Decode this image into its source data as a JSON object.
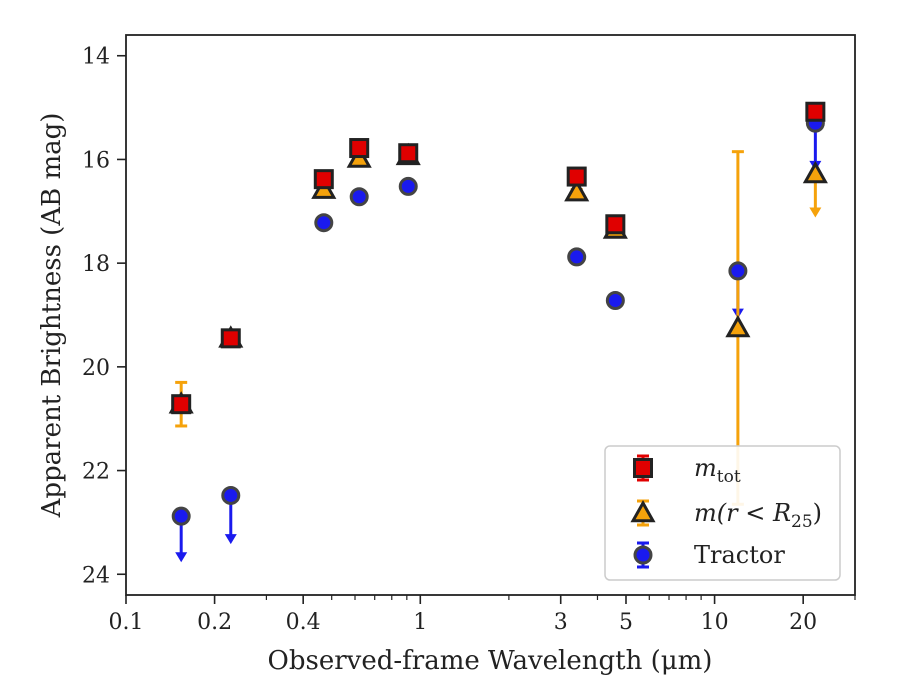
{
  "chart_data": {
    "type": "scatter",
    "xlabel": "Observed-frame Wavelength (μm)",
    "ylabel": "Apparent Brightness (AB mag)",
    "xscale": "log",
    "xlim": [
      0.1,
      30
    ],
    "ylim": [
      24.4,
      13.6
    ],
    "y_inverted": true,
    "x_ticks": [
      0.1,
      0.2,
      0.4,
      1,
      3,
      5,
      10,
      20
    ],
    "x_tick_labels": [
      "0.1",
      "0.2",
      "0.4",
      "1",
      "3",
      "5",
      "10",
      "20"
    ],
    "y_ticks": [
      14,
      16,
      18,
      20,
      22,
      24
    ],
    "y_tick_labels": [
      "14",
      "16",
      "18",
      "20",
      "22",
      "24"
    ],
    "grid": false,
    "legend_position": "lower right",
    "series": [
      {
        "name": "m_tot",
        "legend_main": "m",
        "legend_sub": "tot",
        "marker": "square",
        "color": "#e00000",
        "edge_color": "#222222",
        "points": [
          {
            "x": 0.154,
            "y": 20.72,
            "err": 0.05
          },
          {
            "x": 0.227,
            "y": 19.45,
            "err": 0.05
          },
          {
            "x": 0.47,
            "y": 16.38,
            "err": 0.05
          },
          {
            "x": 0.62,
            "y": 15.78,
            "err": 0.05
          },
          {
            "x": 0.91,
            "y": 15.88,
            "err": 0.05
          },
          {
            "x": 3.4,
            "y": 16.33,
            "err": 0.05
          },
          {
            "x": 4.6,
            "y": 17.25,
            "err": 0.05
          },
          {
            "x": 22.0,
            "y": 15.08,
            "err": 0.05
          }
        ]
      },
      {
        "name": "m(r < R25)",
        "legend_main": "m(r < R",
        "legend_sub": "25",
        "legend_end": ")",
        "marker": "triangle",
        "color": "#f5a20b",
        "edge_color": "#222222",
        "points": [
          {
            "x": 0.154,
            "y": 20.72,
            "err": 0.42
          },
          {
            "x": 0.227,
            "y": 19.45,
            "err": 0.05
          },
          {
            "x": 0.47,
            "y": 16.58,
            "err": 0.05
          },
          {
            "x": 0.62,
            "y": 15.98,
            "err": 0.05
          },
          {
            "x": 0.91,
            "y": 15.93,
            "err": 0.05
          },
          {
            "x": 3.4,
            "y": 16.63,
            "err": 0.05
          },
          {
            "x": 4.6,
            "y": 17.35,
            "err": 0.05
          },
          {
            "x": 12.0,
            "y": 19.25,
            "err_up": 3.4,
            "err_down": 3.4
          },
          {
            "x": 22.0,
            "y": 16.28,
            "upper_limit": true,
            "arrow_to": 17.1
          }
        ]
      },
      {
        "name": "Tractor",
        "legend_main": "Tractor",
        "marker": "circle",
        "color": "#1a1aee",
        "edge_color": "#444444",
        "points": [
          {
            "x": 0.154,
            "y": 22.88,
            "upper_limit": true,
            "arrow_to": 23.75
          },
          {
            "x": 0.227,
            "y": 22.48,
            "upper_limit": true,
            "arrow_to": 23.4
          },
          {
            "x": 0.47,
            "y": 17.22,
            "err": 0.03
          },
          {
            "x": 0.62,
            "y": 16.72,
            "err": 0.03
          },
          {
            "x": 0.91,
            "y": 16.52,
            "err": 0.03
          },
          {
            "x": 3.4,
            "y": 17.88,
            "err": 0.03
          },
          {
            "x": 4.6,
            "y": 18.72,
            "err": 0.03
          },
          {
            "x": 12.0,
            "y": 18.15,
            "upper_limit": true,
            "arrow_to": 19.05
          },
          {
            "x": 22.0,
            "y": 15.3,
            "upper_limit": true,
            "arrow_to": 16.2
          }
        ]
      }
    ]
  }
}
